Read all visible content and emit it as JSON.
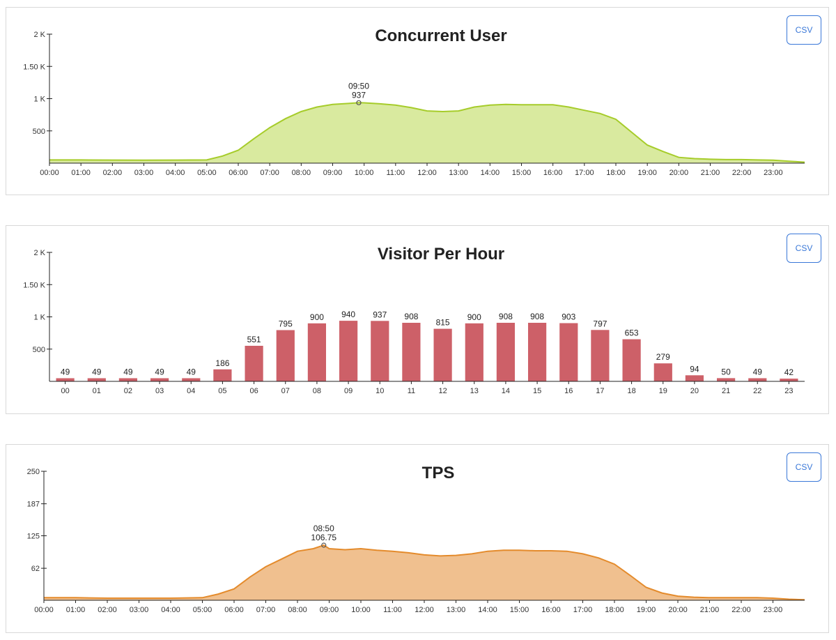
{
  "csv_label": "CSV",
  "chart_data": [
    {
      "id": "concurrent-user",
      "type": "area",
      "title": "Concurrent User",
      "y_ticks": [
        "500",
        "1 K",
        "1.50 K",
        "2 K"
      ],
      "y_tick_values": [
        500,
        1000,
        1500,
        2000
      ],
      "ylim": [
        0,
        2000
      ],
      "x_ticks": [
        "00:00",
        "01:00",
        "02:00",
        "03:00",
        "04:00",
        "05:00",
        "06:00",
        "07:00",
        "08:00",
        "09:00",
        "10:00",
        "11:00",
        "12:00",
        "13:00",
        "14:00",
        "15:00",
        "16:00",
        "17:00",
        "18:00",
        "19:00",
        "20:00",
        "21:00",
        "22:00",
        "23:00"
      ],
      "xlim": [
        0,
        24
      ],
      "x": [
        0,
        1,
        2,
        3,
        4,
        5,
        5.5,
        6,
        6.5,
        7,
        7.5,
        8,
        8.5,
        9,
        9.5,
        9.83,
        10,
        10.5,
        11,
        11.5,
        12,
        12.5,
        13,
        13.5,
        14,
        14.5,
        15,
        15.5,
        16,
        16.5,
        17,
        17.5,
        18,
        18.5,
        19,
        19.5,
        20,
        20.5,
        21,
        21.5,
        22,
        22.5,
        23,
        23.5,
        24
      ],
      "values": [
        50,
        50,
        48,
        46,
        48,
        50,
        110,
        200,
        380,
        550,
        690,
        800,
        870,
        910,
        925,
        937,
        935,
        920,
        900,
        860,
        810,
        800,
        810,
        870,
        900,
        910,
        905,
        905,
        905,
        870,
        820,
        770,
        680,
        480,
        280,
        180,
        90,
        70,
        60,
        55,
        55,
        50,
        45,
        30,
        15
      ],
      "color": "#a6cc2a",
      "fill": "#d9ea9f",
      "annotation": {
        "x": 9.83,
        "y": 937,
        "label_time": "09:50",
        "label_value": "937"
      }
    },
    {
      "id": "visitor-per-hour",
      "type": "bar",
      "title": "Visitor Per Hour",
      "y_ticks": [
        "500",
        "1 K",
        "1.50 K",
        "2 K"
      ],
      "y_tick_values": [
        500,
        1000,
        1500,
        2000
      ],
      "ylim": [
        0,
        2000
      ],
      "categories": [
        "00",
        "01",
        "02",
        "03",
        "04",
        "05",
        "06",
        "07",
        "08",
        "09",
        "10",
        "11",
        "12",
        "13",
        "14",
        "15",
        "16",
        "17",
        "18",
        "19",
        "20",
        "21",
        "22",
        "23"
      ],
      "values": [
        49,
        49,
        49,
        49,
        49,
        186,
        551,
        795,
        900,
        940,
        937,
        908,
        815,
        900,
        908,
        908,
        903,
        797,
        653,
        279,
        94,
        50,
        49,
        42
      ],
      "color": "#cd6068"
    },
    {
      "id": "tps",
      "type": "area",
      "title": "TPS",
      "y_ticks": [
        "62",
        "125",
        "187",
        "250"
      ],
      "y_tick_values": [
        62,
        125,
        187,
        250
      ],
      "ylim": [
        0,
        250
      ],
      "x_ticks": [
        "00:00",
        "01:00",
        "02:00",
        "03:00",
        "04:00",
        "05:00",
        "06:00",
        "07:00",
        "08:00",
        "09:00",
        "10:00",
        "11:00",
        "12:00",
        "13:00",
        "14:00",
        "15:00",
        "16:00",
        "17:00",
        "18:00",
        "19:00",
        "20:00",
        "21:00",
        "22:00",
        "23:00"
      ],
      "xlim": [
        0,
        24
      ],
      "x": [
        0,
        1,
        2,
        3,
        4,
        5,
        5.5,
        6,
        6.5,
        7,
        7.5,
        8,
        8.5,
        8.83,
        9,
        9.5,
        10,
        10.5,
        11,
        11.5,
        12,
        12.5,
        13,
        13.5,
        14,
        14.5,
        15,
        15.5,
        16,
        16.5,
        17,
        17.5,
        18,
        18.5,
        19,
        19.5,
        20,
        20.5,
        21,
        21.5,
        22,
        22.5,
        23,
        23.5,
        24
      ],
      "values": [
        5,
        5,
        4,
        4,
        4,
        5,
        12,
        22,
        45,
        65,
        80,
        95,
        100,
        106.75,
        100,
        98,
        100,
        97,
        95,
        92,
        88,
        86,
        87,
        90,
        95,
        97,
        97,
        96,
        96,
        95,
        90,
        82,
        70,
        48,
        25,
        14,
        8,
        6,
        5,
        5,
        5,
        5,
        4,
        2,
        1
      ],
      "color": "#e48b2c",
      "fill": "#f0c08f",
      "annotation": {
        "x": 8.83,
        "y": 106.75,
        "label_time": "08:50",
        "label_value": "106.75"
      }
    }
  ]
}
